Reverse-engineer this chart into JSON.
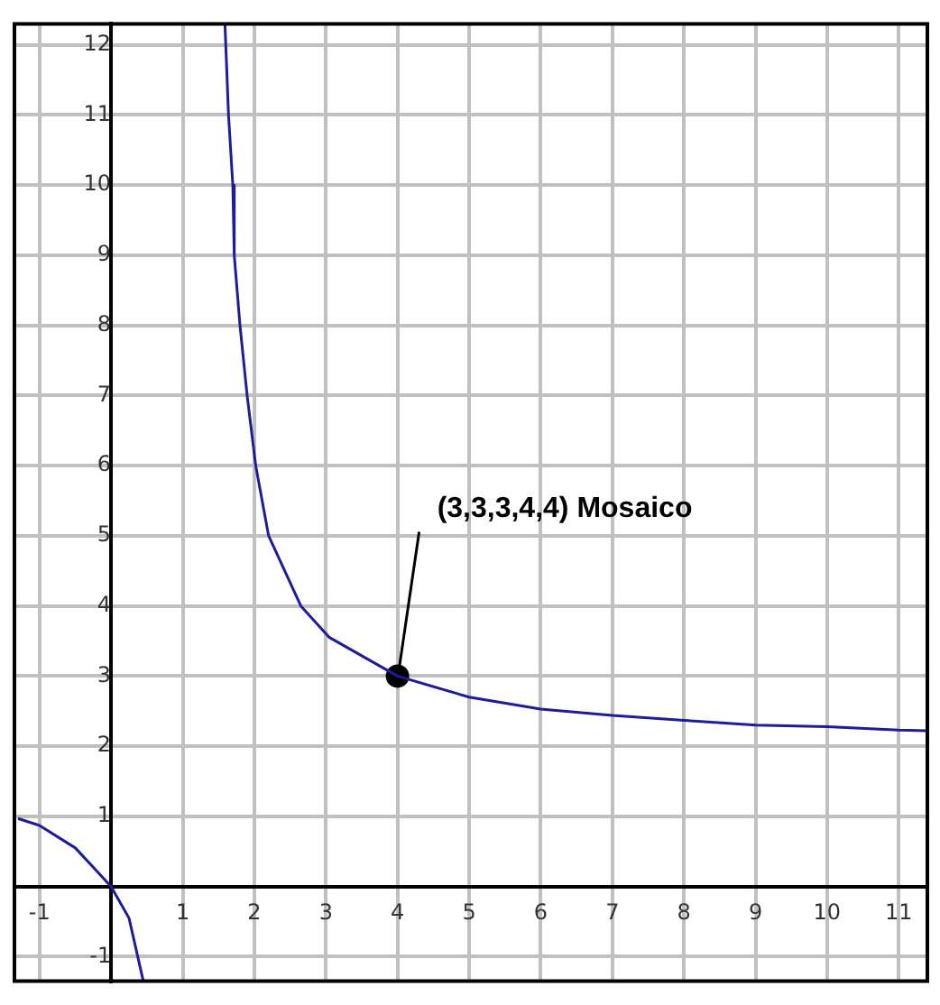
{
  "chart_data": {
    "type": "line",
    "xlim": [
      -1.35,
      11.4
    ],
    "ylim": [
      -1.35,
      12.3
    ],
    "xticks": [
      -1,
      {
        "value": 0,
        "label": null
      },
      1,
      2,
      3,
      4,
      5,
      6,
      7,
      8,
      9,
      10,
      11
    ],
    "yticks": [
      -1,
      {
        "value": 0,
        "label": null
      },
      1,
      2,
      3,
      4,
      5,
      6,
      7,
      8,
      9,
      10,
      11,
      12
    ],
    "grid": true,
    "series": [
      {
        "color": "#1c1c9c",
        "x": [
          -1.3,
          -1,
          -0.5,
          -0.2,
          0,
          0.25,
          0.45
        ],
        "values": [
          0.97,
          0.87,
          0.55,
          0.22,
          0,
          -0.45,
          -1.35
        ]
      },
      {
        "color": "#1c1c9c",
        "x": [
          1.59,
          1.64,
          1.7,
          1.72,
          1.8,
          1.9,
          2.02,
          2.2,
          2.65,
          3.05,
          4,
          5,
          6,
          7,
          8,
          9,
          10,
          11,
          11.4
        ],
        "values": [
          12.3,
          11,
          10,
          9,
          8,
          7,
          6,
          5,
          4,
          3.55,
          3,
          2.7,
          2.53,
          2.44,
          2.37,
          2.3,
          2.28,
          2.23,
          2.22
        ]
      },
      {
        "type": "scatter",
        "color": "#000000",
        "marker": "circle",
        "x": [
          4
        ],
        "values": [
          3
        ]
      }
    ],
    "annotations": [
      {
        "text": "(3,3,3,4,4) Mosaico",
        "x": 4,
        "y": 3
      }
    ]
  }
}
